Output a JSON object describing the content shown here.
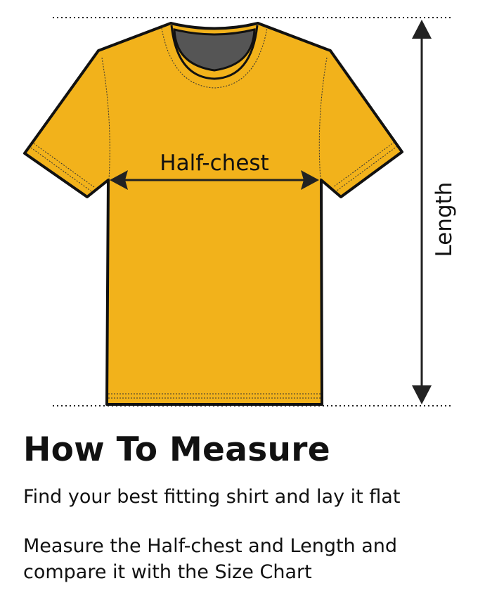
{
  "diagram": {
    "half_chest_label": "Half-chest",
    "length_label": "Length",
    "shirt_color": "#F2B21B",
    "collar_inner_color": "#555555",
    "outline_color": "#111111"
  },
  "content": {
    "title": "How To Measure",
    "step1": "Find your best fitting shirt and lay it flat",
    "step2": "Measure the Half-chest and Length and compare it with the Size Chart"
  }
}
